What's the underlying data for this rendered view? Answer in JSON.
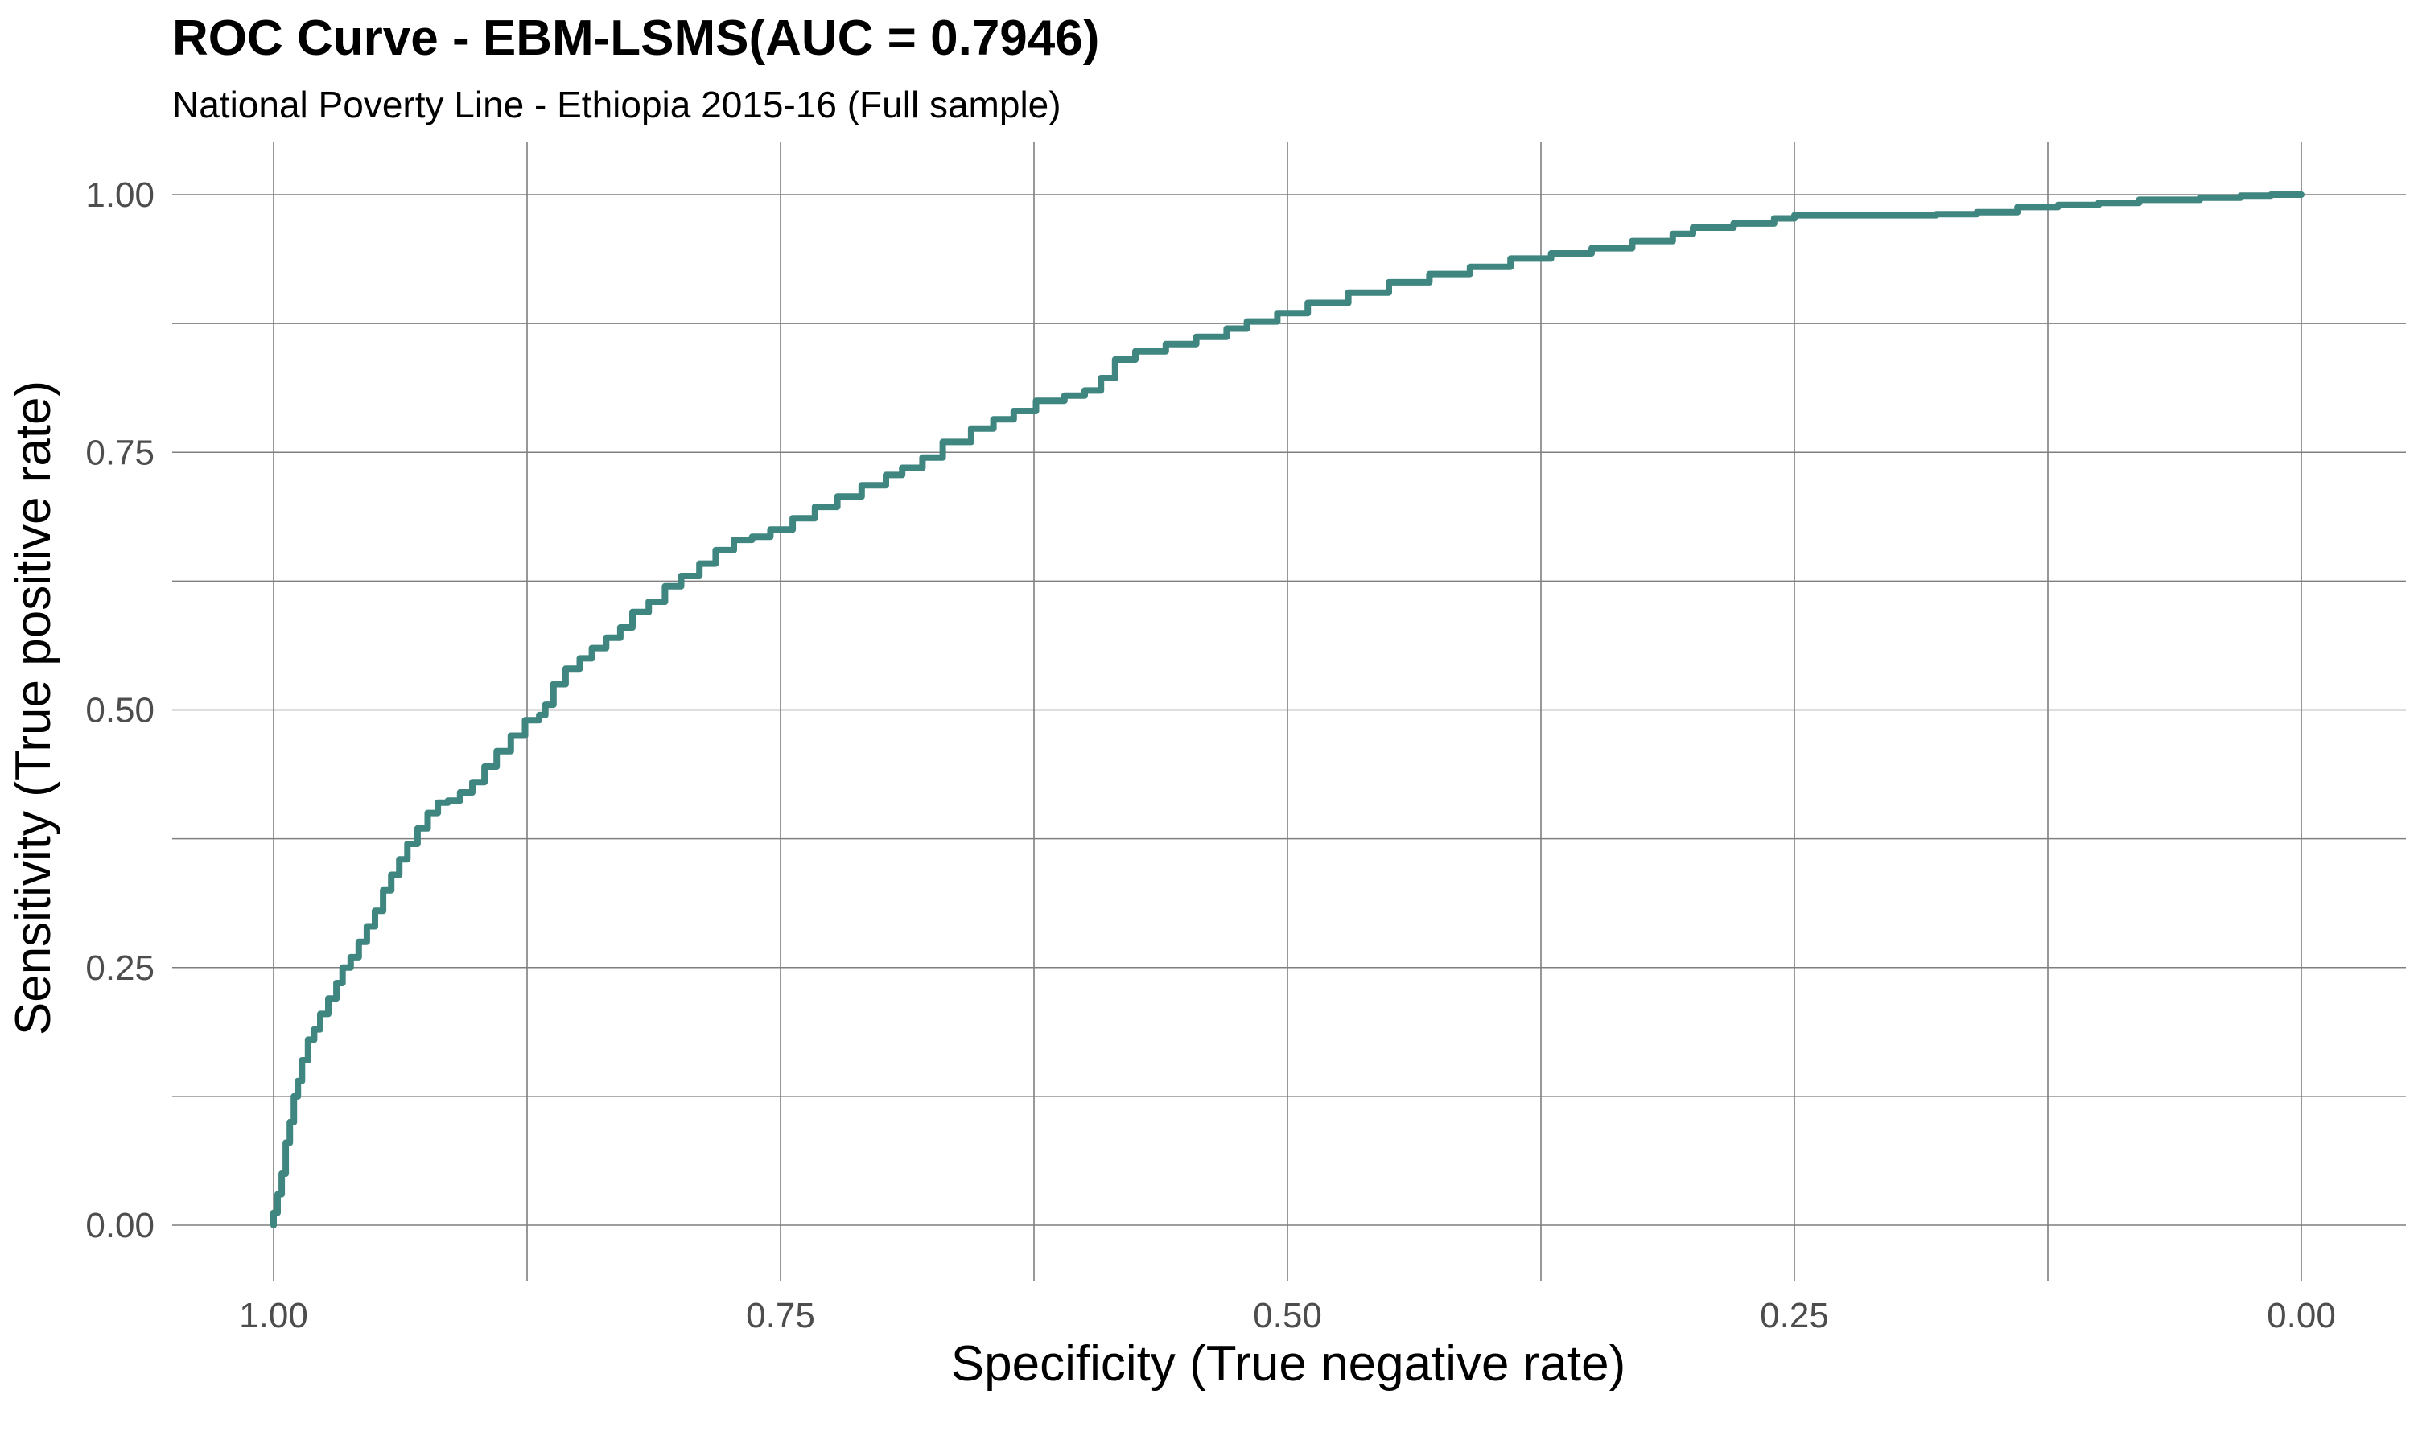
{
  "chart_data": {
    "type": "line",
    "title": "ROC Curve - EBM-LSMS(AUC = 0.7946)",
    "subtitle": "National Poverty Line - Ethiopia 2015-16 (Full sample)",
    "xlabel": "Specificity (True negative rate)",
    "ylabel": "Sensitivity (True positive rate)",
    "xlim": [
      1.0,
      0.0
    ],
    "ylim": [
      0.0,
      1.0
    ],
    "x_reversed": true,
    "grid": true,
    "legend": "none",
    "x_ticks": [
      "1.00",
      "0.75",
      "0.50",
      "0.25",
      "0.00"
    ],
    "y_ticks": [
      "0.00",
      "0.25",
      "0.50",
      "0.75",
      "1.00"
    ],
    "colors": {
      "line": "#3f8580"
    },
    "series": [
      {
        "x": [
          1.0,
          0.998,
          0.996,
          0.994,
          0.992,
          0.99,
          0.988,
          0.986,
          0.983,
          0.98,
          0.977,
          0.973,
          0.969,
          0.966,
          0.962,
          0.958,
          0.954,
          0.95,
          0.946,
          0.942,
          0.938,
          0.934,
          0.929,
          0.924,
          0.919,
          0.914,
          0.908,
          0.902,
          0.896,
          0.89,
          0.883,
          0.876,
          0.869,
          0.866,
          0.862,
          0.856,
          0.849,
          0.843,
          0.836,
          0.829,
          0.823,
          0.815,
          0.807,
          0.799,
          0.79,
          0.782,
          0.773,
          0.764,
          0.755,
          0.744,
          0.733,
          0.722,
          0.71,
          0.698,
          0.69,
          0.68,
          0.67,
          0.656,
          0.645,
          0.635,
          0.624,
          0.61,
          0.6,
          0.592,
          0.585,
          0.575,
          0.56,
          0.545,
          0.53,
          0.52,
          0.505,
          0.49,
          0.47,
          0.45,
          0.43,
          0.41,
          0.39,
          0.37,
          0.35,
          0.33,
          0.31,
          0.3,
          0.28,
          0.26,
          0.25,
          0.23,
          0.2,
          0.18,
          0.16,
          0.14,
          0.12,
          0.1,
          0.08,
          0.05,
          0.03,
          0.015,
          0.0
        ],
        "y": [
          0.0,
          0.012,
          0.03,
          0.05,
          0.08,
          0.1,
          0.125,
          0.14,
          0.16,
          0.18,
          0.19,
          0.205,
          0.22,
          0.235,
          0.25,
          0.26,
          0.275,
          0.29,
          0.305,
          0.325,
          0.34,
          0.355,
          0.37,
          0.385,
          0.4,
          0.41,
          0.412,
          0.42,
          0.43,
          0.445,
          0.46,
          0.475,
          0.49,
          0.495,
          0.505,
          0.525,
          0.54,
          0.55,
          0.56,
          0.57,
          0.58,
          0.595,
          0.605,
          0.62,
          0.63,
          0.642,
          0.655,
          0.665,
          0.668,
          0.675,
          0.686,
          0.697,
          0.707,
          0.718,
          0.728,
          0.735,
          0.745,
          0.76,
          0.773,
          0.782,
          0.79,
          0.8,
          0.805,
          0.81,
          0.822,
          0.84,
          0.848,
          0.855,
          0.862,
          0.87,
          0.877,
          0.885,
          0.895,
          0.905,
          0.915,
          0.923,
          0.93,
          0.938,
          0.943,
          0.948,
          0.955,
          0.962,
          0.968,
          0.972,
          0.977,
          0.98,
          0.98,
          0.98,
          0.981,
          0.983,
          0.988,
          0.99,
          0.992,
          0.995,
          0.997,
          0.999,
          1.0
        ]
      }
    ]
  }
}
